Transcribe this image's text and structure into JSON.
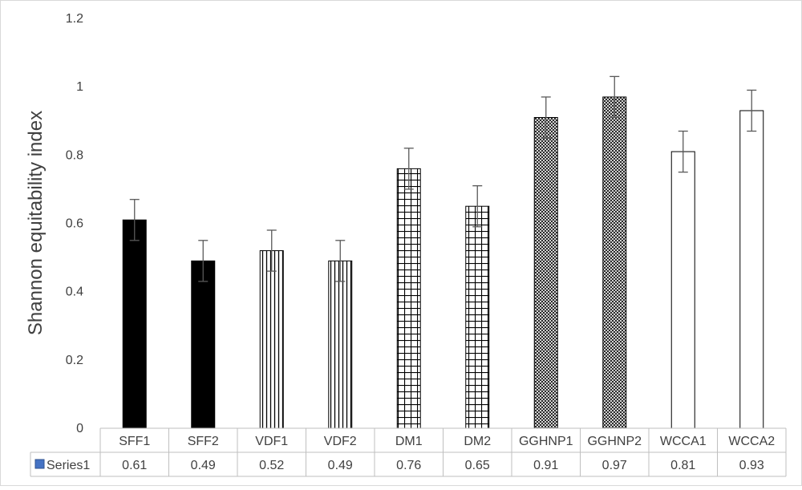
{
  "chart_data": {
    "type": "bar",
    "ylabel": "Shannon equitability index",
    "ylim": [
      0,
      1.2
    ],
    "yticks": [
      "0",
      "0.2",
      "0.4",
      "0.6",
      "0.8",
      "1",
      "1.2"
    ],
    "ytick_values": [
      0,
      0.2,
      0.4,
      0.6,
      0.8,
      1,
      1.2
    ],
    "categories": [
      "SFF1",
      "SFF2",
      "VDF1",
      "VDF2",
      "DM1",
      "DM2",
      "GGHNP1",
      "GGHNP2",
      "WCCA1",
      "WCCA2"
    ],
    "patterns": [
      "solid",
      "solid",
      "vertical",
      "vertical",
      "grid",
      "grid",
      "crosshatch",
      "crosshatch",
      "empty",
      "empty"
    ],
    "series": [
      {
        "name": "Series1",
        "values": [
          0.61,
          0.49,
          0.52,
          0.49,
          0.76,
          0.65,
          0.91,
          0.97,
          0.81,
          0.93
        ],
        "value_labels": [
          "0.61",
          "0.49",
          "0.52",
          "0.49",
          "0.76",
          "0.65",
          "0.91",
          "0.97",
          "0.81",
          "0.93"
        ],
        "error": [
          0.06,
          0.06,
          0.06,
          0.06,
          0.06,
          0.06,
          0.06,
          0.06,
          0.06,
          0.06
        ]
      }
    ],
    "legend_color": "#4472c4",
    "grid": false,
    "data_table": true
  }
}
